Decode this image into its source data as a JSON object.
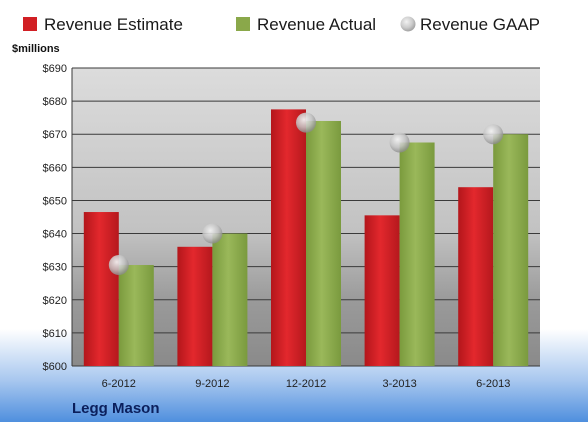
{
  "chart_data": {
    "type": "bar",
    "unit_label": "$millions",
    "company": "Legg Mason",
    "categories": [
      "6-2012",
      "9-2012",
      "12-2012",
      "3-2013",
      "6-2013"
    ],
    "ylim": [
      600,
      690
    ],
    "yticks": [
      600,
      610,
      620,
      630,
      640,
      650,
      660,
      670,
      680,
      690
    ],
    "ytick_labels": [
      "$600",
      "$610",
      "$620",
      "$630",
      "$640",
      "$650",
      "$660",
      "$670",
      "$680",
      "$690"
    ],
    "series": [
      {
        "name": "Revenue Estimate",
        "kind": "bar",
        "color": "#d11f24",
        "values": [
          646.5,
          636,
          677.5,
          645.5,
          654
        ]
      },
      {
        "name": "Revenue Actual",
        "kind": "bar",
        "color": "#8aa84a",
        "values": [
          630.5,
          640,
          674,
          667.5,
          670
        ]
      },
      {
        "name": "Revenue GAAP",
        "kind": "marker",
        "color": "#bfbfbf",
        "values": [
          630.5,
          640,
          673.5,
          667.5,
          670
        ]
      }
    ],
    "grid": true,
    "legend": "top"
  }
}
